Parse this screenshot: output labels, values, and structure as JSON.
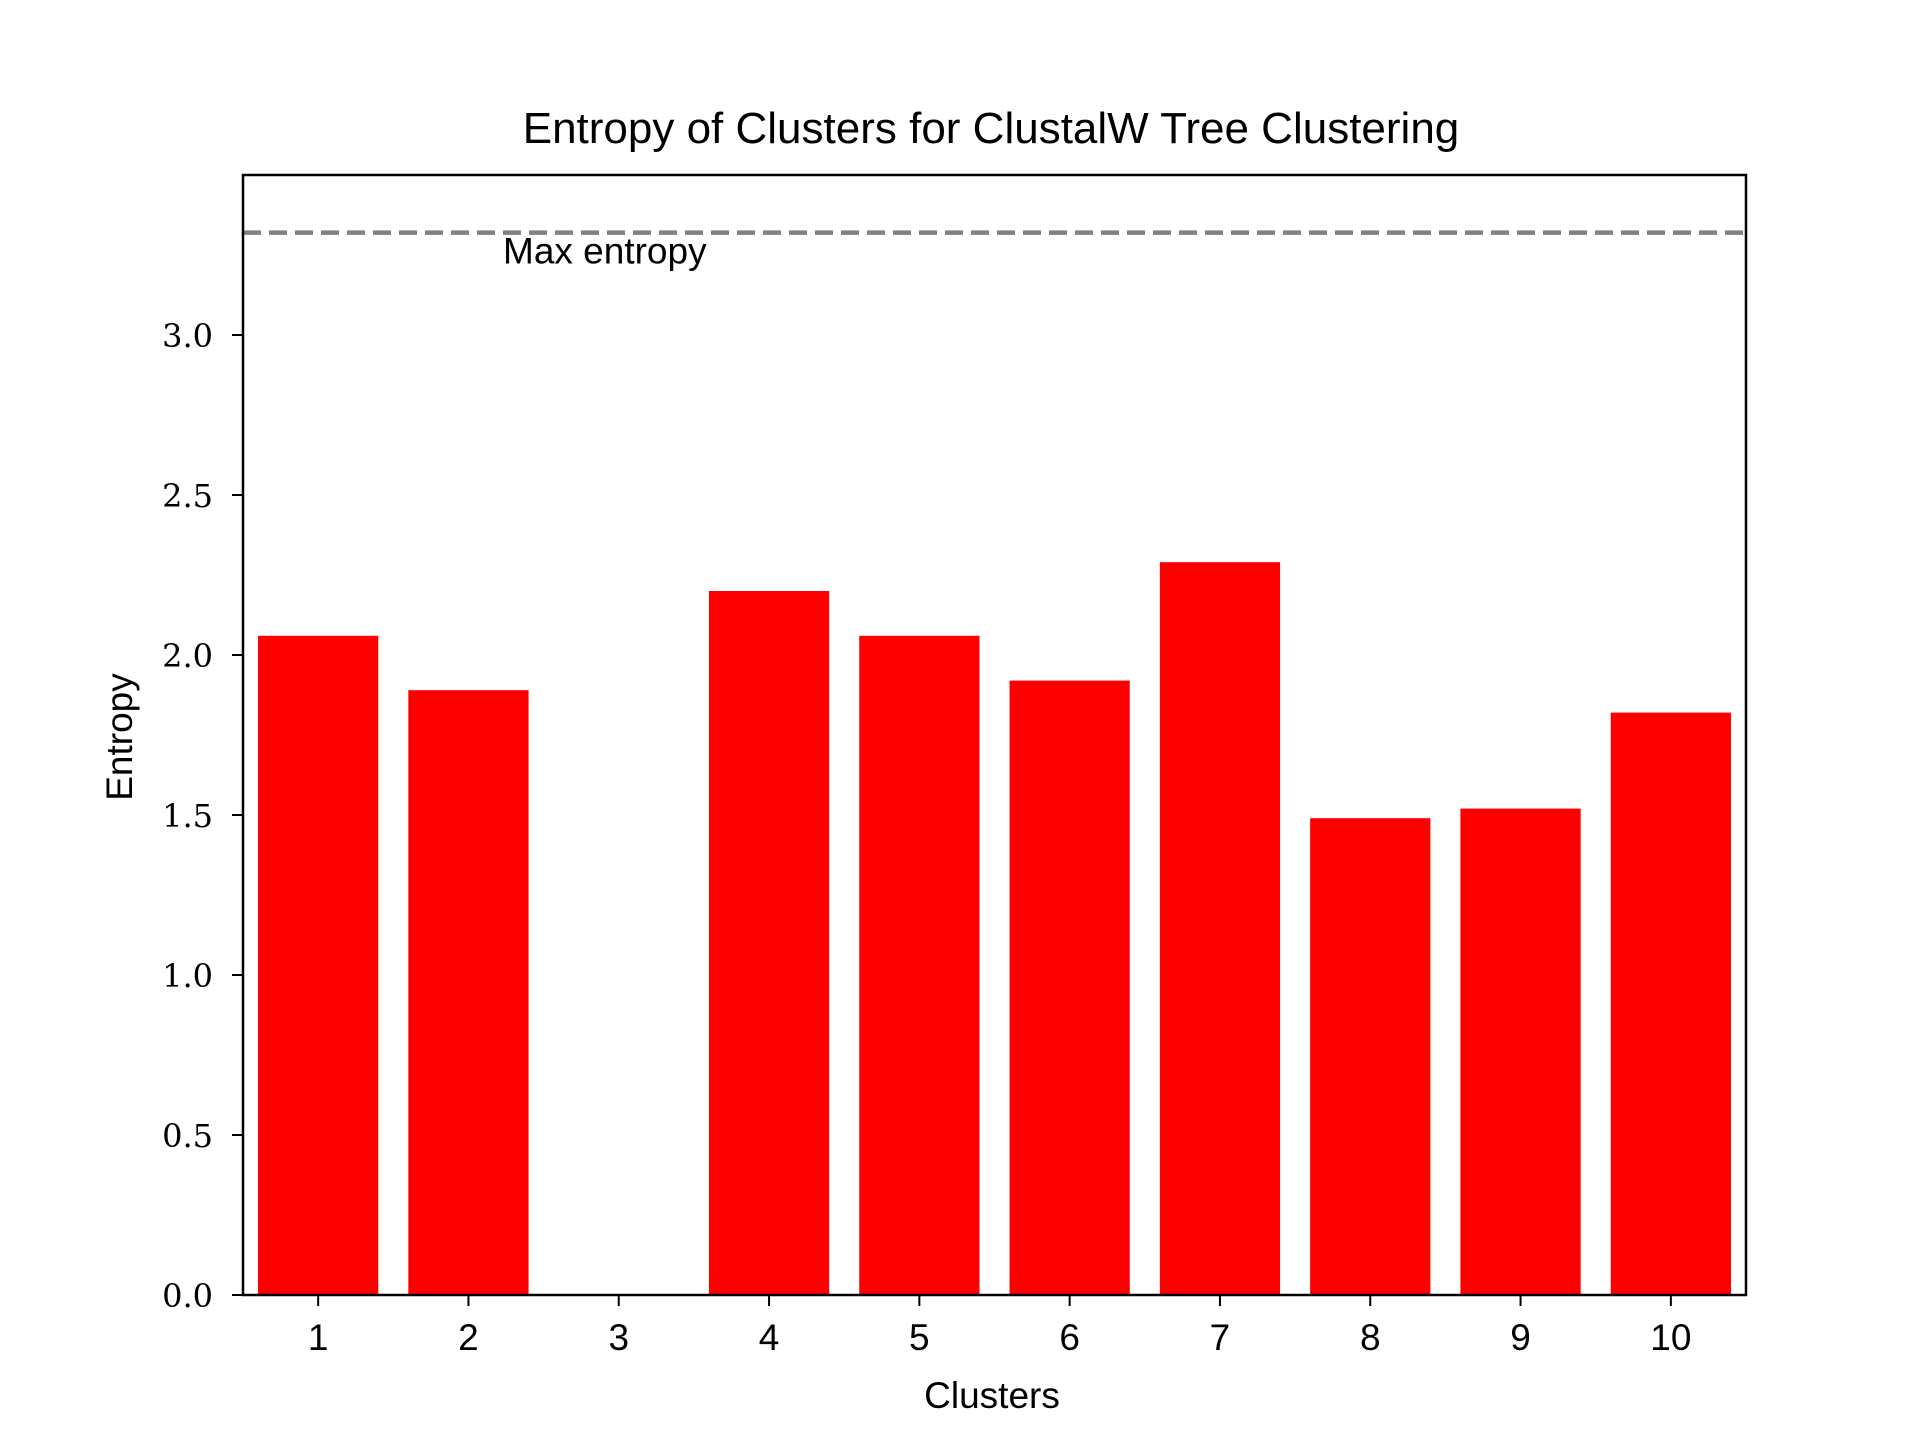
{
  "chart_data": {
    "type": "bar",
    "title": "Entropy of Clusters for ClustalW Tree Clustering",
    "xlabel": "Clusters",
    "ylabel": "Entropy",
    "categories": [
      "1",
      "2",
      "3",
      "4",
      "5",
      "6",
      "7",
      "8",
      "9",
      "10"
    ],
    "values": [
      2.06,
      1.89,
      0.0,
      2.2,
      2.06,
      1.92,
      2.29,
      1.49,
      1.52,
      1.82
    ],
    "ylim": [
      0,
      3.5
    ],
    "xlim": [
      0.5,
      10.5
    ],
    "yticks": [
      "0.0",
      "0.5",
      "1.0",
      "1.5",
      "2.0",
      "2.5",
      "3.0"
    ],
    "ytick_values": [
      0,
      0.5,
      1.0,
      1.5,
      2.0,
      2.5,
      3.0
    ],
    "bar_color": "#ff0000",
    "reference_line": {
      "value": 3.32,
      "label": "Max entropy",
      "color": "#808080",
      "style": "dashed"
    },
    "grid": false,
    "legend": "none"
  }
}
